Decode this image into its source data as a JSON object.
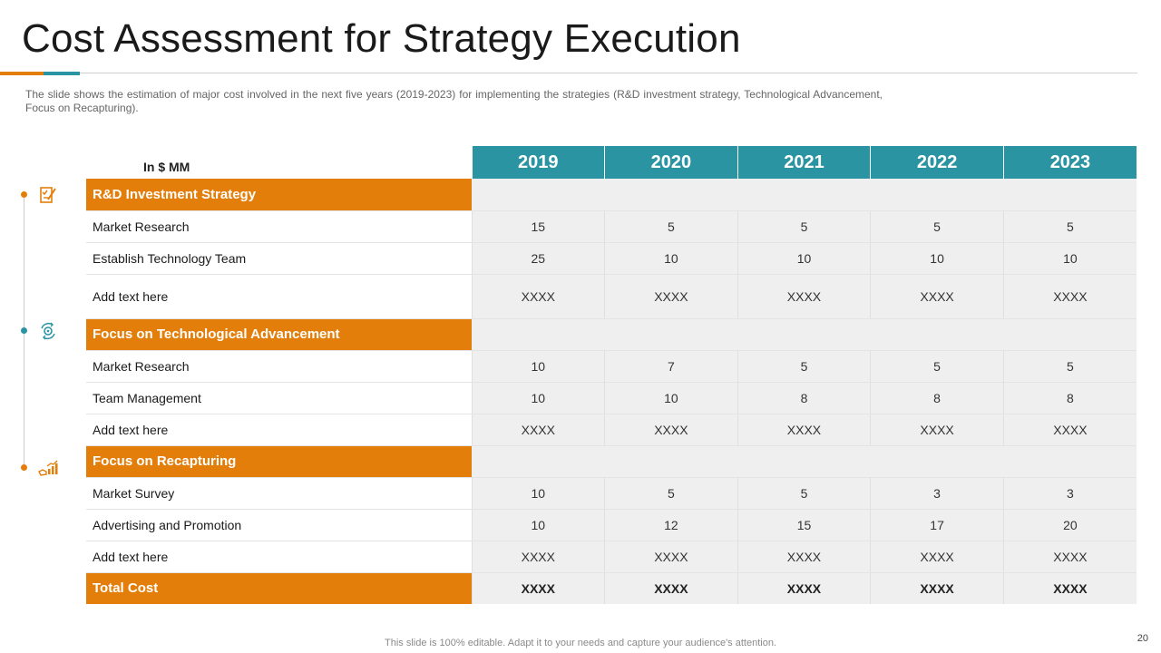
{
  "title": "Cost Assessment for Strategy Execution",
  "subtitle": "The slide shows the estimation of major cost involved  in the next five  years (2019-2023)  for implementing the strategies (R&D investment  strategy, Technological Advancement,  Focus on Recapturing).",
  "table": {
    "unit_label": "In $ MM",
    "years": [
      "2019",
      "2020",
      "2021",
      "2022",
      "2023"
    ],
    "sections": [
      {
        "name": "R&D Investment Strategy",
        "icon": "checklist-pen-icon",
        "rows": [
          {
            "label": "Market Research",
            "values": [
              "15",
              "5",
              "5",
              "5",
              "5"
            ]
          },
          {
            "label": "Establish Technology Team",
            "values": [
              "25",
              "10",
              "10",
              "10",
              "10"
            ]
          },
          {
            "label": "Add text here",
            "values": [
              "XXXX",
              "XXXX",
              "XXXX",
              "XXXX",
              "XXXX"
            ]
          }
        ]
      },
      {
        "name": "Focus on Technological Advancement",
        "icon": "gear-cycle-icon",
        "rows": [
          {
            "label": "Market Research",
            "values": [
              "10",
              "7",
              "5",
              "5",
              "5"
            ]
          },
          {
            "label": "Team Management",
            "values": [
              "10",
              "10",
              "8",
              "8",
              "8"
            ]
          },
          {
            "label": "Add text here",
            "values": [
              "XXXX",
              "XXXX",
              "XXXX",
              "XXXX",
              "XXXX"
            ]
          }
        ]
      },
      {
        "name": "Focus on Recapturing",
        "icon": "growth-chart-hand-icon",
        "rows": [
          {
            "label": "Market Survey",
            "values": [
              "10",
              "5",
              "5",
              "3",
              "3"
            ]
          },
          {
            "label": "Advertising and Promotion",
            "values": [
              "10",
              "12",
              "15",
              "17",
              "20"
            ]
          },
          {
            "label": "Add text here",
            "values": [
              "XXXX",
              "XXXX",
              "XXXX",
              "XXXX",
              "XXXX"
            ]
          }
        ]
      }
    ],
    "total": {
      "label": "Total Cost",
      "values": [
        "XXXX",
        "XXXX",
        "XXXX",
        "XXXX",
        "XXXX"
      ]
    }
  },
  "footer": "This slide is 100% editable. Adapt it to your needs and capture your audience's attention.",
  "page_number": "20",
  "colors": {
    "accent_orange": "#e47e0b",
    "accent_teal": "#2a94a3",
    "cell_gray": "#efefef"
  }
}
